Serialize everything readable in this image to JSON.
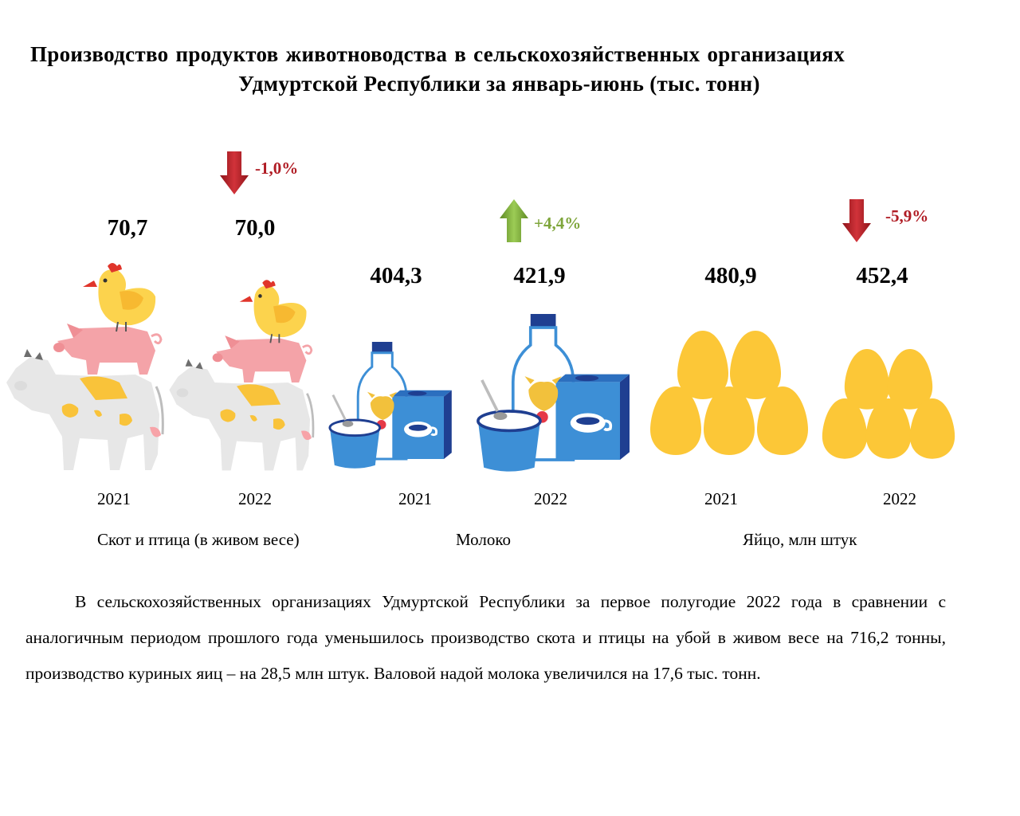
{
  "title": {
    "line1": "Производство продуктов животноводства в сельскохозяйственных организациях",
    "line2": "Удмуртской Республики за январь-июнь (тыс. тонн)"
  },
  "colors": {
    "down": "#b01c24",
    "up": "#7fa63c",
    "egg": "#fcc737",
    "milk_blue": "#3d8fd6",
    "pig": "#f4a3a8",
    "chicken": "#fcd34d"
  },
  "groups": [
    {
      "category": "Скот и птица (в живом весе)",
      "icon": "livestock-icon",
      "years": [
        "2021",
        "2022"
      ],
      "values_text": [
        "70,7",
        "70,0"
      ],
      "change": "-1,0%",
      "direction": "down"
    },
    {
      "category": "Молоко",
      "icon": "milk-icon",
      "years": [
        "2021",
        "2022"
      ],
      "values_text": [
        "404,3",
        "421,9"
      ],
      "change": "+4,4%",
      "direction": "up"
    },
    {
      "category": "Яйцо, млн штук",
      "icon": "eggs-icon",
      "years": [
        "2021",
        "2022"
      ],
      "values_text": [
        "480,9",
        "452,4"
      ],
      "change": "-5,9%",
      "direction": "down"
    }
  ],
  "chart_data": {
    "type": "bar",
    "title": "Производство продуктов животноводства в сельскохозяйственных организациях Удмуртской Республики за январь-июнь (тыс. тонн)",
    "categories": [
      "Скот и птица (в живом весе)",
      "Молоко",
      "Яйцо, млн штук"
    ],
    "series": [
      {
        "name": "2021",
        "values": [
          70.7,
          404.3,
          480.9
        ]
      },
      {
        "name": "2022",
        "values": [
          70.0,
          421.9,
          452.4
        ]
      }
    ],
    "changes": [
      "-1,0%",
      "+4,4%",
      "-5,9%"
    ]
  },
  "paragraph": "В сельскохозяйственных организациях Удмуртской Республики за первое полугодие 2022 года в сравнении с аналогичным периодом прошлого года уменьшилось производство скота и птицы на убой в живом весе на 716,2 тонны, производство куриных яиц – на 28,5 млн штук. Валовой надой молока увеличился на 17,6 тыс. тонн."
}
